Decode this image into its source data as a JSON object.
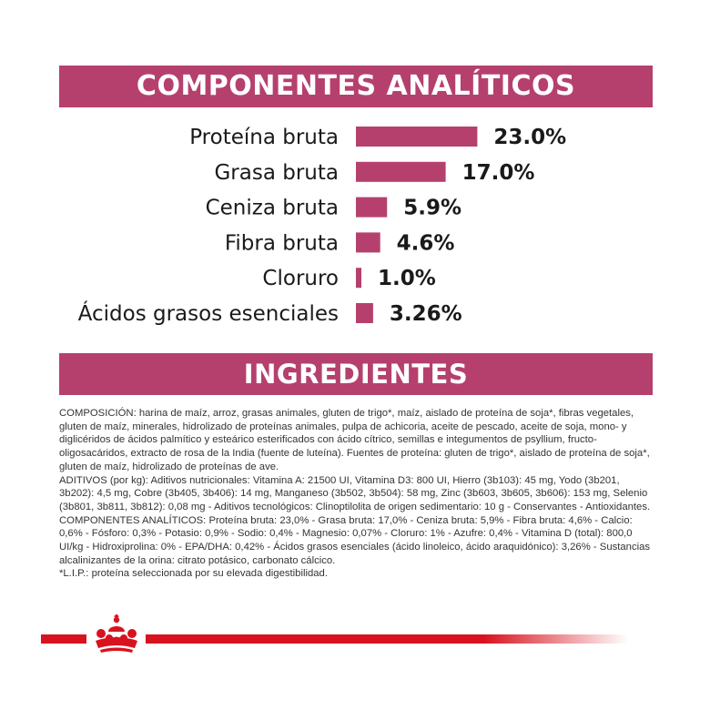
{
  "colors": {
    "banner": "#b5406e",
    "bar": "#b5406e",
    "brand_red": "#d8121f"
  },
  "headings": {
    "analytics": "COMPONENTES ANALÍTICOS",
    "ingredients": "INGREDIENTES"
  },
  "chart_data": {
    "type": "bar",
    "orientation": "horizontal",
    "categories": [
      "Proteína bruta",
      "Grasa bruta",
      "Ceniza bruta",
      "Fibra bruta",
      "Cloruro",
      "Ácidos grasos esenciales"
    ],
    "values": [
      23.0,
      17.0,
      5.9,
      4.6,
      1.0,
      3.26
    ],
    "value_labels": [
      "23.0%",
      "17.0%",
      "5.9%",
      "4.6%",
      "1.0%",
      "3.26%"
    ],
    "unit": "%",
    "grid": false,
    "legend": "none"
  },
  "ingredients": {
    "composition": "COMPOSICIÓN: harina de maíz, arroz, grasas animales, gluten de trigo*, maíz, aislado de proteína de soja*, fibras vegetales, gluten de maíz, minerales, hidrolizado de proteínas animales, pulpa de achicoria, aceite de pescado, aceite de soja, mono- y diglicéridos de ácidos palmítico y esteárico esterificados con ácido cítrico, semillas e integumentos de psyllium, fructo-oligosacáridos, extracto de rosa de la India (fuente de luteína). Fuentes de proteína: gluten de trigo*, aislado de proteína de soja*, gluten de maíz, hidrolizado de proteínas de ave.",
    "additives": "ADITIVOS (por kg): Aditivos nutricionales: Vitamina A: 21500 UI, Vitamina D3: 800 UI, Hierro (3b103): 45 mg, Yodo (3b201, 3b202): 4,5 mg, Cobre (3b405, 3b406): 14 mg, Manganeso (3b502, 3b504): 58 mg, Zinc (3b603, 3b605, 3b606): 153 mg, Selenio (3b801, 3b811, 3b812): 0,08 mg - Aditivos tecnológicos: Clinoptilolita de origen sedimentario: 10 g - Conservantes - Antioxidantes.",
    "analytical": "COMPONENTES ANALÍTICOS: Proteína bruta: 23,0% - Grasa bruta: 17,0% - Ceniza bruta: 5,9% - Fibra bruta: 4,6% - Calcio: 0,6% - Fósforo: 0,3% - Potasio: 0,9% - Sodio: 0,4% - Magnesio: 0,07% - Cloruro: 1% - Azufre: 0,4% - Vitamina D (total): 800,0 UI/kg - Hidroxiprolina: 0% - EPA/DHA: 0,42% - Ácidos grasos esenciales (ácido linoleico, ácido araquidónico): 3,26% - Sustancias alcalinizantes de la orina: citrato potásico, carbonato cálcico.",
    "note": "*L.I.P.: proteína seleccionada por su elevada digestibilidad."
  },
  "brand": {
    "logo": "crown-logo"
  }
}
